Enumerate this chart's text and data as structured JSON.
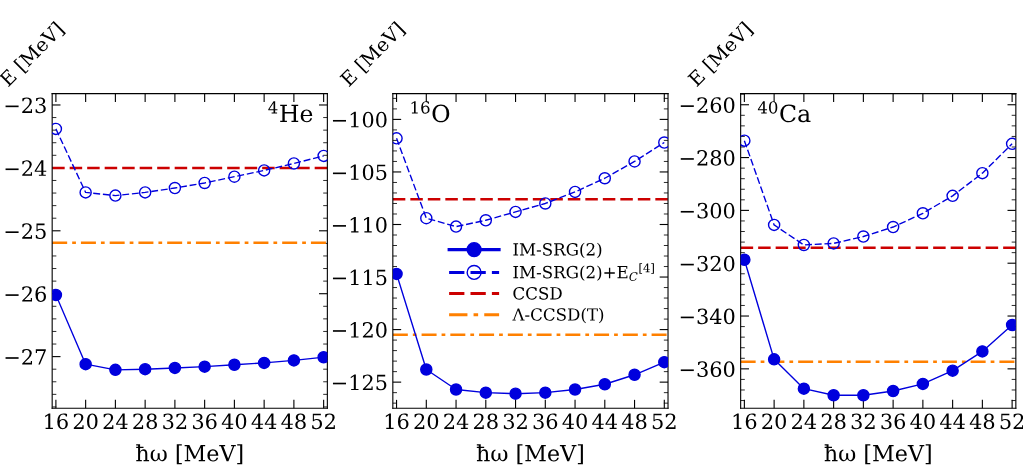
{
  "chart_data": [
    {
      "type": "line",
      "xlabel": "ħω [MeV]",
      "ylabel": "E [MeV]",
      "annotations": [
        "$^{4}$He"
      ],
      "x": [
        16,
        20,
        24,
        28,
        32,
        36,
        40,
        44,
        48,
        52
      ],
      "xlim": [
        15.5,
        52.5
      ],
      "xticks": [
        16,
        20,
        24,
        28,
        32,
        36,
        40,
        44,
        48,
        52
      ],
      "ylim": [
        -27.82,
        -22.82
      ],
      "yticks": [
        {
          "value": -27,
          "label": "−27"
        },
        {
          "value": -26,
          "label": "−26"
        },
        {
          "value": -25,
          "label": "−25"
        },
        {
          "value": -24,
          "label": "−24"
        },
        {
          "value": -23,
          "label": "−23"
        }
      ],
      "grid": false,
      "legend": false,
      "series": [
        {
          "color": "#0000dd",
          "marker": "circle",
          "line_style": "solid",
          "values": [
            -26.02,
            -27.12,
            -27.21,
            -27.2,
            -27.18,
            -27.16,
            -27.13,
            -27.1,
            -27.06,
            -27.01
          ]
        },
        {
          "color": "#0000dd",
          "marker": "open circle",
          "line_style": "dashed",
          "values": [
            -23.38,
            -24.39,
            -24.44,
            -24.39,
            -24.32,
            -24.24,
            -24.14,
            -24.04,
            -23.93,
            -23.81
          ]
        }
      ],
      "ref_lines": [
        {
          "axis": "y",
          "value": -24.0,
          "color": "#cc0000",
          "line_style": "dashed"
        },
        {
          "axis": "y",
          "value": -25.19,
          "color": "#ff8000",
          "line_style": "dashdot"
        }
      ]
    },
    {
      "type": "line",
      "xlabel": "ħω [MeV]",
      "ylabel": "E [MeV]",
      "annotations": [
        "$^{16}$O"
      ],
      "x": [
        16,
        20,
        24,
        28,
        32,
        36,
        40,
        44,
        48,
        52
      ],
      "xlim": [
        15.5,
        52.5
      ],
      "xticks": [
        16,
        20,
        24,
        28,
        32,
        36,
        40,
        44,
        48,
        52
      ],
      "ylim": [
        -127.48,
        -97.55
      ],
      "yticks": [
        {
          "value": -125,
          "label": "−125"
        },
        {
          "value": -120,
          "label": "−120"
        },
        {
          "value": -115,
          "label": "−115"
        },
        {
          "value": -110,
          "label": "−110"
        },
        {
          "value": -105,
          "label": "−105"
        },
        {
          "value": -100,
          "label": "−100"
        }
      ],
      "grid": false,
      "legend": "center",
      "series": [
        {
          "name": "IM-SRG(2)",
          "color": "#0000dd",
          "marker": "circle",
          "line_style": "solid",
          "values": [
            -114.7,
            -123.8,
            -125.7,
            -126.0,
            -126.1,
            -126.0,
            -125.7,
            -125.2,
            -124.3,
            -123.1
          ]
        },
        {
          "name": "IM-SRG(2)+E$_{C}$$^{[4]}$",
          "color": "#0000dd",
          "marker": "open circle",
          "line_style": "dashed",
          "values": [
            -101.8,
            -109.4,
            -110.2,
            -109.6,
            -108.8,
            -108.0,
            -106.9,
            -105.6,
            -104.0,
            -102.2
          ]
        }
      ],
      "ref_lines": [
        {
          "axis": "y",
          "value": -107.6,
          "label": "CCSD",
          "color": "#cc0000",
          "line_style": "dashed"
        },
        {
          "axis": "y",
          "value": -120.5,
          "label": "Λ-CCSD(T)",
          "color": "#ff8000",
          "line_style": "dashdot"
        }
      ]
    },
    {
      "type": "line",
      "xlabel": "ħω [MeV]",
      "ylabel": "E [MeV]",
      "annotations": [
        "$^{40}$Ca"
      ],
      "x": [
        16,
        20,
        24,
        28,
        32,
        36,
        40,
        44,
        48,
        52
      ],
      "xlim": [
        15.5,
        52.5
      ],
      "xticks": [
        16,
        20,
        24,
        28,
        32,
        36,
        40,
        44,
        48,
        52
      ],
      "ylim": [
        -374.9,
        -255.8
      ],
      "yticks": [
        {
          "value": -360,
          "label": "−360"
        },
        {
          "value": -340,
          "label": "−340"
        },
        {
          "value": -320,
          "label": "−320"
        },
        {
          "value": -300,
          "label": "−300"
        },
        {
          "value": -280,
          "label": "−280"
        },
        {
          "value": -260,
          "label": "−260"
        }
      ],
      "grid": false,
      "legend": false,
      "series": [
        {
          "color": "#0000dd",
          "marker": "circle",
          "line_style": "solid",
          "values": [
            -318.7,
            -356.4,
            -367.5,
            -370.0,
            -370.0,
            -368.4,
            -365.7,
            -360.7,
            -353.4,
            -343.4
          ]
        },
        {
          "color": "#0000dd",
          "marker": "open circle",
          "line_style": "dashed",
          "values": [
            -273.6,
            -305.5,
            -313.1,
            -312.5,
            -309.9,
            -306.3,
            -301.1,
            -294.5,
            -285.9,
            -274.8
          ]
        }
      ],
      "ref_lines": [
        {
          "axis": "y",
          "value": -314.1,
          "color": "#cc0000",
          "line_style": "dashed"
        },
        {
          "axis": "y",
          "value": -357.3,
          "color": "#ff8000",
          "line_style": "dashdot"
        }
      ]
    }
  ]
}
